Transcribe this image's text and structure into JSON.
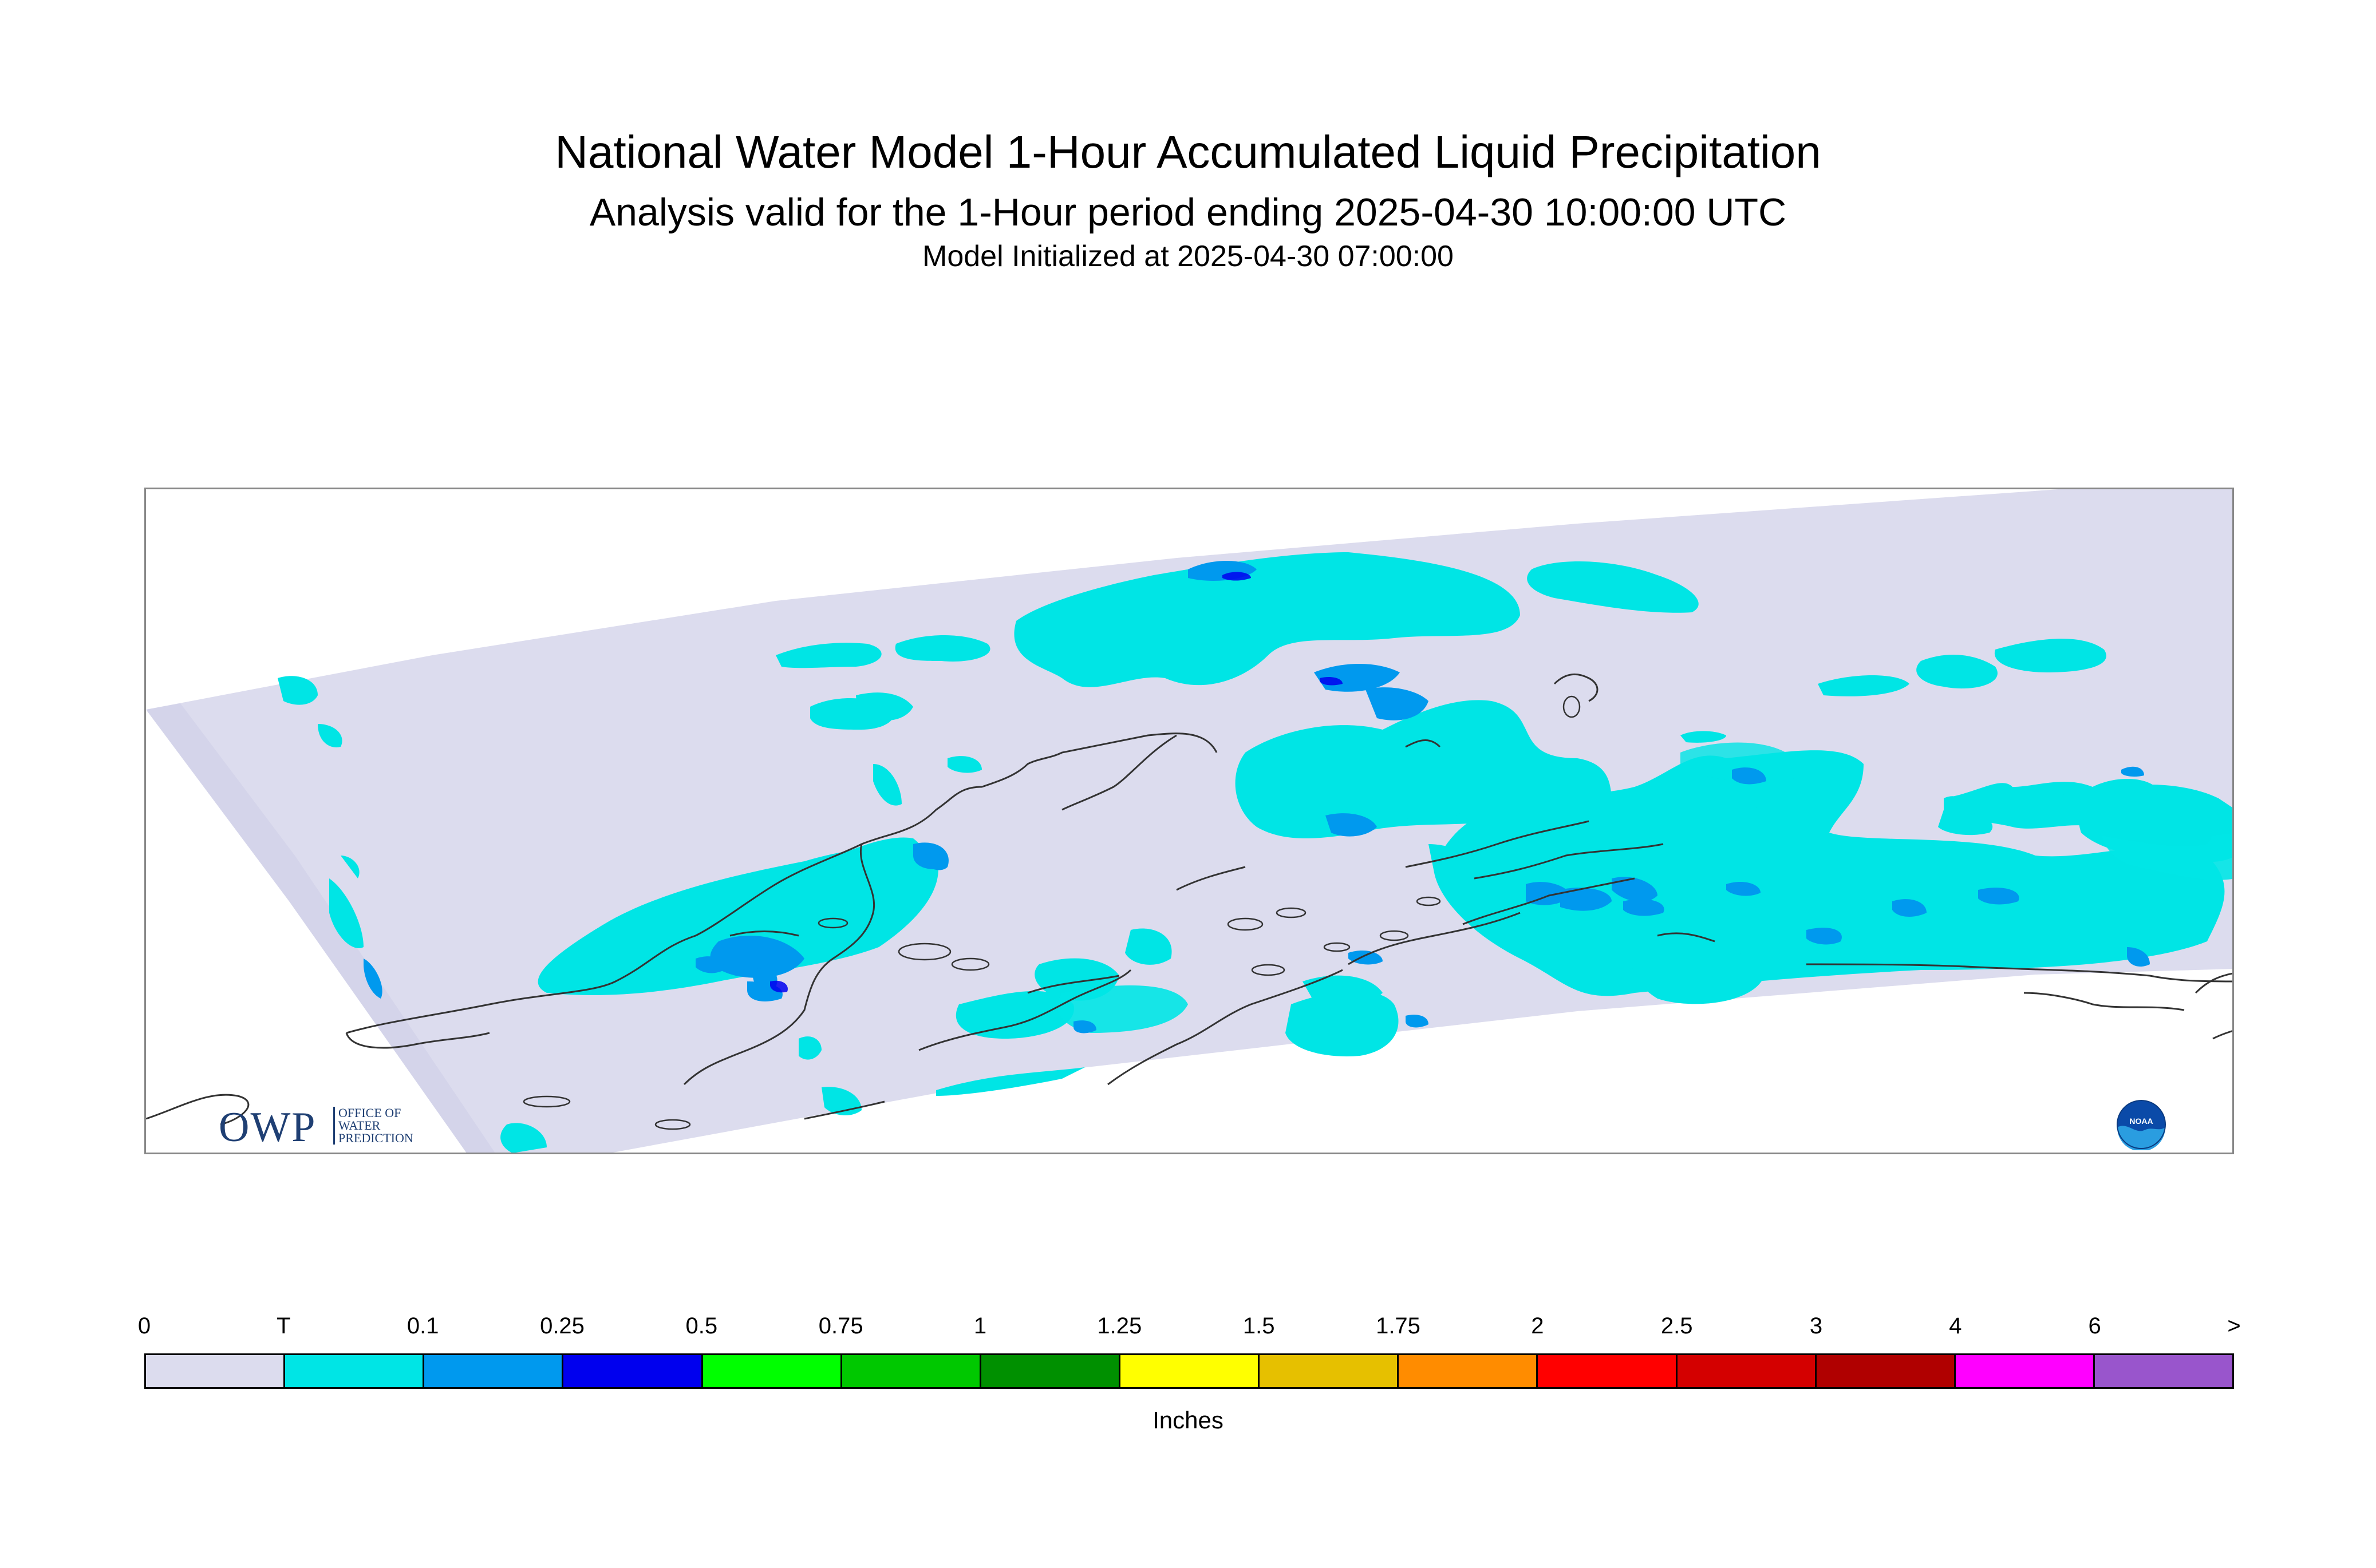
{
  "title": "National Water Model 1-Hour Accumulated Liquid Precipitation",
  "subtitle": "Analysis valid for the 1-Hour period ending 2025-04-30 10:00:00 UTC",
  "init_line": "Model Initialized at 2025-04-30 07:00:00",
  "logos": {
    "owp": {
      "letters": "OWP",
      "small_lines": [
        "OFFICE OF",
        "WATER",
        "PREDICTION"
      ]
    },
    "noaa": {
      "text": "NOAA"
    }
  },
  "colors": {
    "no_data_domain": "#dcdcee",
    "trace": "#00e5e5",
    "light": "#0099ee",
    "heavy": "#0000ee",
    "coastline": "#333333"
  },
  "legend": {
    "labels": [
      "0",
      "T",
      "0.1",
      "0.25",
      "0.5",
      "0.75",
      "1",
      "1.25",
      "1.5",
      "1.75",
      "2",
      "2.5",
      "3",
      "4",
      "6",
      ">"
    ],
    "colors": [
      "#dcdcee",
      "#00e5e5",
      "#0099ee",
      "#0000ee",
      "#00ff00",
      "#00c800",
      "#009000",
      "#ffff00",
      "#e6c000",
      "#ff8c00",
      "#ff0000",
      "#d40000",
      "#b00000",
      "#ff00ff",
      "#9955cc"
    ],
    "units": "Inches"
  }
}
